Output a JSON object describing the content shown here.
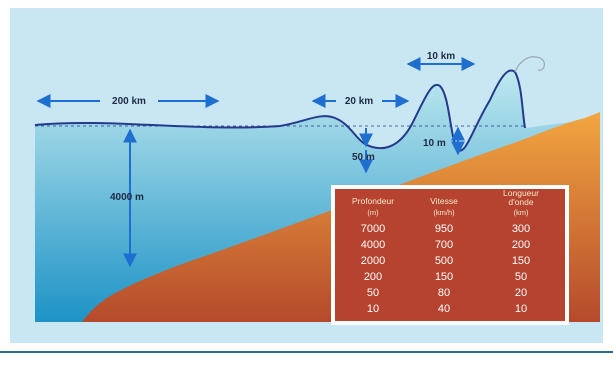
{
  "labels": {
    "width_200": "200 km",
    "width_20": "20 km",
    "width_10": "10 km",
    "depth_4000": "4000 m",
    "height_50": "50 m",
    "height_10": "10 m"
  },
  "table": {
    "headers": [
      {
        "title": "Profondeur",
        "unit": "(m)"
      },
      {
        "title": "Vitesse",
        "unit": "(km/h)"
      },
      {
        "title_line1": "Longueur",
        "title_line2": "d'onde",
        "unit": "(km)"
      }
    ],
    "rows": [
      [
        "7000",
        "950",
        "300"
      ],
      [
        "4000",
        "700",
        "200"
      ],
      [
        "2000",
        "500",
        "150"
      ],
      [
        "200",
        "150",
        "50"
      ],
      [
        "50",
        "80",
        "20"
      ],
      [
        "10",
        "40",
        "10"
      ]
    ]
  },
  "colors": {
    "frame": "#c9e6f3",
    "sea_top": "#bfe8ef",
    "sea_bottom": "#1d93c6",
    "land_top": "#f2a640",
    "land_bottom": "#b54a2c",
    "table_bg": "#b5432f",
    "arrow": "#1f6fd0",
    "wave_line": "#243a8c"
  }
}
